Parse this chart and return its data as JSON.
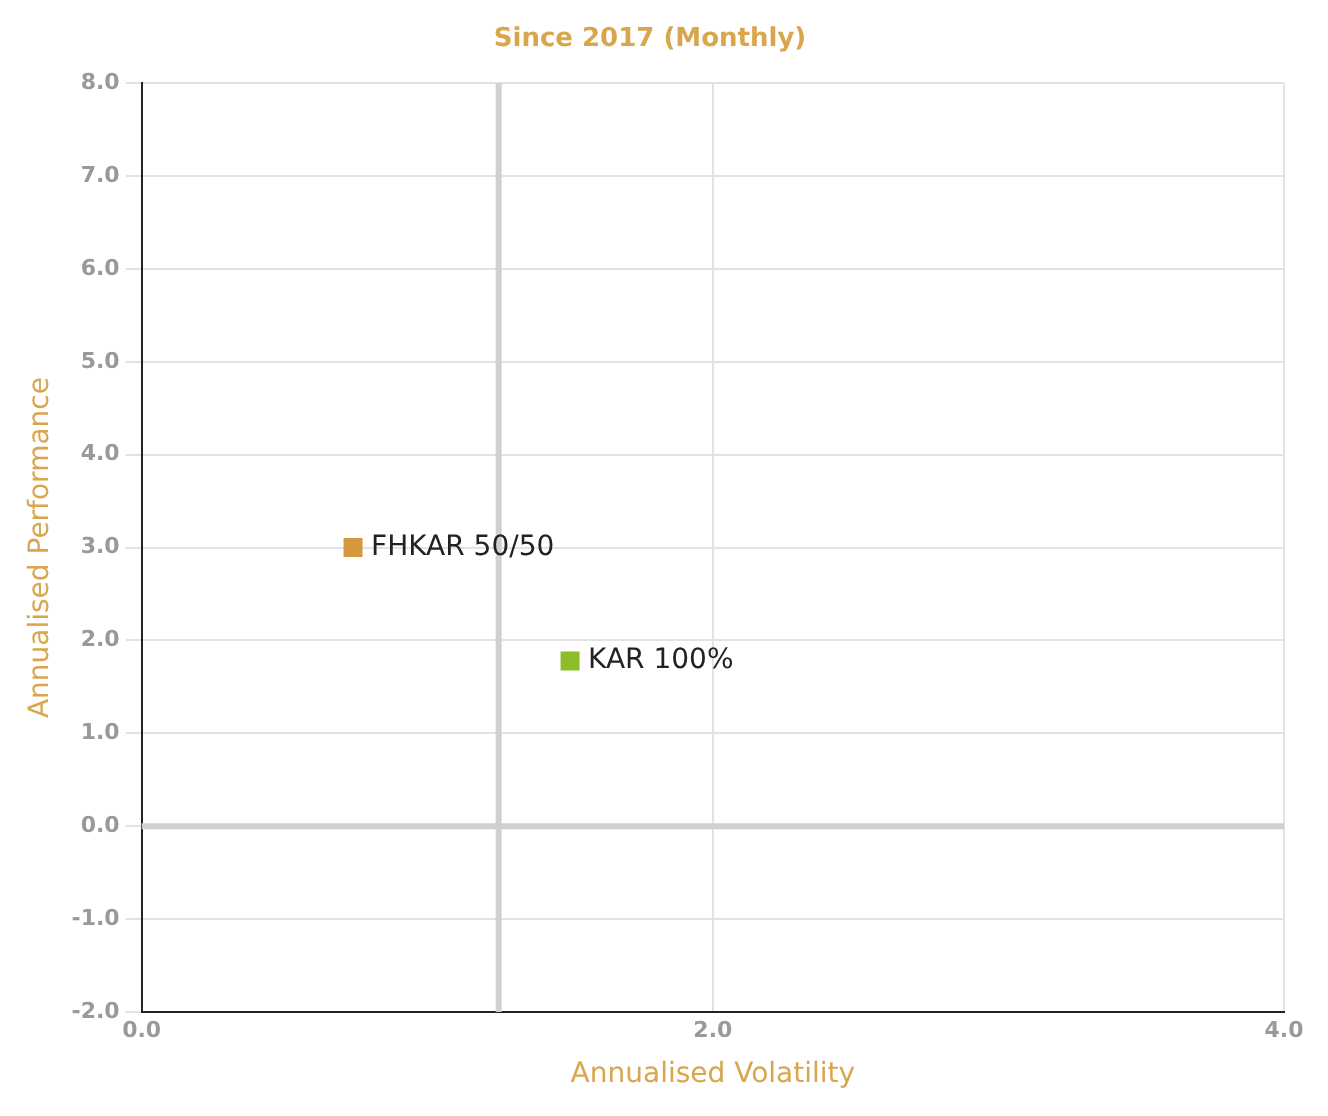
{
  "chart_data": {
    "type": "scatter",
    "title": "Since 2017 (Monthly)",
    "xlabel": "Annualised Volatility",
    "ylabel": "Annualised Performance",
    "series": [
      {
        "name": "FHKAR 50/50",
        "color": "#d4993f",
        "x": [
          0.74
        ],
        "values": [
          3.0
        ]
      },
      {
        "name": "KAR 100%",
        "color": "#8cbd2a",
        "x": [
          1.5
        ],
        "values": [
          1.78
        ]
      }
    ],
    "xlim": [
      0,
      4
    ],
    "xticks": [
      {
        "value": 0,
        "label": "0.0"
      },
      {
        "value": 2,
        "label": "2.0"
      },
      {
        "value": 4,
        "label": "4.0"
      }
    ],
    "ylim": [
      -2,
      8
    ],
    "yticks": [
      {
        "value": -2,
        "label": "-2.0"
      },
      {
        "value": -1,
        "label": "-1.0"
      },
      {
        "value": 0,
        "label": "0.0"
      },
      {
        "value": 1,
        "label": "1.0"
      },
      {
        "value": 2,
        "label": "2.0"
      },
      {
        "value": 3,
        "label": "3.0"
      },
      {
        "value": 4,
        "label": "4.0"
      },
      {
        "value": 5,
        "label": "5.0"
      },
      {
        "value": 6,
        "label": "6.0"
      },
      {
        "value": 7,
        "label": "7.0"
      },
      {
        "value": 8,
        "label": "8.0"
      }
    ],
    "ref_lines": [
      {
        "axis": "x",
        "value": 1.25,
        "color": "#d0d0d0"
      },
      {
        "axis": "y",
        "value": 0,
        "color": "#d0d0d0"
      }
    ],
    "grid": true,
    "marker": "square",
    "legend": false
  }
}
